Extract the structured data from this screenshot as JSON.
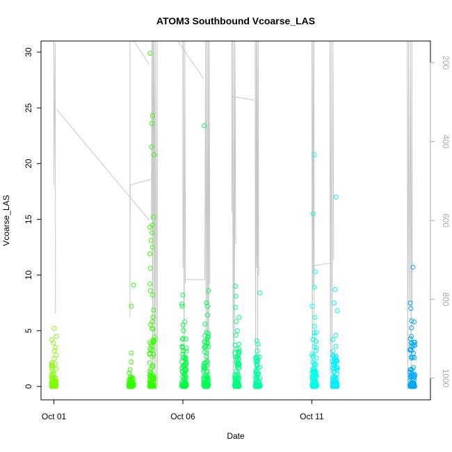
{
  "chart_data": {
    "type": "scatter",
    "title": "ATOM3 Southbound Vcoarse_LAS",
    "xlabel": "Date",
    "ylabel": "Vcoarse_LAS",
    "x_ticks": [
      {
        "label": "Oct 01",
        "day": 1
      },
      {
        "label": "Oct 06",
        "day": 6
      },
      {
        "label": "Oct 11",
        "day": 11
      }
    ],
    "xlim": [
      0.5,
      15.6
    ],
    "ylim": [
      -1.2,
      31
    ],
    "y_ticks": [
      0,
      5,
      10,
      15,
      20,
      25,
      30
    ],
    "right_axis": {
      "description": "depth overlay (reversed)",
      "ylim": [
        1055,
        145
      ],
      "ticks": [
        200,
        400,
        600,
        800,
        1000
      ],
      "color": "#aaaaaa"
    },
    "grid": false,
    "legend": "none",
    "point_clusters": [
      {
        "day": 1.0,
        "color": "#80ff00",
        "median": 0.6,
        "max_dense": 2.2,
        "extras": [
          2.5,
          2.8,
          3.2,
          3.5,
          3.9,
          4.2,
          4.5,
          5.2
        ]
      },
      {
        "day": 4.0,
        "color": "#33ff00",
        "median": 0.2,
        "max_dense": 0.9,
        "extras": [
          1.2,
          1.5,
          2.2,
          3.0,
          7.2,
          9.1
        ]
      },
      {
        "day": 4.8,
        "color": "#33ff00",
        "median": 1.5,
        "max_dense": 7.5,
        "extras": [
          8.2,
          8.6,
          9.2,
          10.6,
          11.9,
          12.5,
          13.1,
          13.8,
          14.3,
          14.5,
          15.2,
          20.8,
          21.5,
          23.6,
          24.3,
          29.9
        ]
      },
      {
        "day": 6.05,
        "color": "#00ff40",
        "median": 0.8,
        "max_dense": 4.5,
        "extras": [
          5.0,
          5.5,
          5.8,
          7.2,
          7.4,
          8.2
        ]
      },
      {
        "day": 6.9,
        "color": "#00ff55",
        "median": 0.9,
        "max_dense": 5.0,
        "extras": [
          5.6,
          6.4,
          7.2,
          7.5,
          8.6,
          23.4
        ]
      },
      {
        "day": 8.1,
        "color": "#00ff80",
        "median": 0.6,
        "max_dense": 4.0,
        "extras": [
          4.6,
          5.0,
          5.8,
          6.2,
          7.1,
          8.1,
          9.0
        ]
      },
      {
        "day": 8.9,
        "color": "#00ffa0",
        "median": 0.5,
        "max_dense": 2.8,
        "extras": [
          3.2,
          3.8,
          4.1,
          8.4
        ]
      },
      {
        "day": 11.1,
        "color": "#00ffe6",
        "median": 0.7,
        "max_dense": 5.0,
        "extras": [
          5.4,
          6.2,
          7.2,
          8.9,
          10.3,
          15.5,
          20.8
        ]
      },
      {
        "day": 11.9,
        "color": "#00f0ff",
        "median": 0.5,
        "max_dense": 3.2,
        "extras": [
          3.6,
          4.2,
          4.6,
          6.8,
          7.5,
          8.7,
          17.0
        ]
      },
      {
        "day": 14.9,
        "color": "#00a8ff",
        "median": 0.6,
        "max_dense": 6.5,
        "extras": [
          7.0,
          7.5,
          10.7
        ]
      }
    ],
    "depth_overlay": {
      "color": "#c8c8c8",
      "segments": [
        [
          [
            1.0,
            145
          ],
          [
            1.0,
            512
          ],
          [
            1.05,
            150
          ],
          [
            1.06,
            836
          ]
        ],
        [
          [
            1.1,
            318
          ],
          [
            4.7,
            600
          ]
        ],
        [
          [
            3.95,
            140
          ],
          [
            3.95,
            846
          ],
          [
            3.96,
            510
          ],
          [
            4.75,
            496
          ]
        ],
        [
          [
            4.1,
            140
          ],
          [
            4.7,
            205
          ]
        ],
        [
          [
            4.78,
            600
          ],
          [
            4.8,
            140
          ],
          [
            4.83,
            1030
          ],
          [
            4.86,
            140
          ],
          [
            4.9,
            1030
          ],
          [
            4.93,
            140
          ],
          [
            4.96,
            1030
          ],
          [
            5.0,
            140
          ],
          [
            5.02,
            1020
          ]
        ],
        [
          [
            4.82,
            140
          ],
          [
            4.84,
            650
          ],
          [
            4.88,
            140
          ],
          [
            4.92,
            660
          ]
        ],
        [
          [
            5.8,
            140
          ],
          [
            6.8,
            240
          ]
        ],
        [
          [
            6.0,
            140
          ],
          [
            6.0,
            720
          ],
          [
            6.02,
            140
          ],
          [
            6.05,
            1030
          ],
          [
            6.08,
            140
          ],
          [
            6.1,
            760
          ]
        ],
        [
          [
            6.08,
            750
          ],
          [
            6.85,
            750
          ],
          [
            6.88,
            140
          ],
          [
            6.9,
            1030
          ],
          [
            6.93,
            140
          ],
          [
            6.96,
            1030
          ],
          [
            6.98,
            140
          ],
          [
            7.0,
            1020
          ],
          [
            7.02,
            140
          ],
          [
            7.05,
            760
          ]
        ],
        [
          [
            7.9,
            140
          ],
          [
            7.9,
            580
          ],
          [
            7.92,
            140
          ],
          [
            7.95,
            1030
          ],
          [
            7.98,
            140
          ],
          [
            8.0,
            1020
          ],
          [
            8.02,
            140
          ],
          [
            8.05,
            660
          ]
        ],
        [
          [
            7.9,
            285
          ],
          [
            8.78,
            295
          ]
        ],
        [
          [
            8.8,
            140
          ],
          [
            8.82,
            1030
          ],
          [
            8.84,
            140
          ],
          [
            8.86,
            720
          ],
          [
            8.88,
            140
          ],
          [
            8.9,
            1030
          ],
          [
            8.92,
            140
          ],
          [
            8.94,
            740
          ]
        ],
        [
          [
            11.0,
            140
          ],
          [
            11.02,
            1030
          ],
          [
            11.04,
            140
          ],
          [
            11.06,
            770
          ],
          [
            11.08,
            140
          ],
          [
            11.1,
            1020
          ]
        ],
        [
          [
            11.05,
            715
          ],
          [
            11.75,
            708
          ]
        ],
        [
          [
            11.7,
            140
          ],
          [
            11.72,
            1030
          ],
          [
            11.75,
            140
          ],
          [
            11.78,
            1020
          ],
          [
            11.82,
            140
          ],
          [
            11.85,
            700
          ]
        ],
        [
          [
            14.7,
            140
          ],
          [
            14.72,
            1030
          ],
          [
            14.75,
            140
          ],
          [
            14.78,
            820
          ],
          [
            14.82,
            140
          ],
          [
            14.85,
            1030
          ],
          [
            14.88,
            140
          ],
          [
            14.9,
            820
          ]
        ]
      ]
    }
  }
}
